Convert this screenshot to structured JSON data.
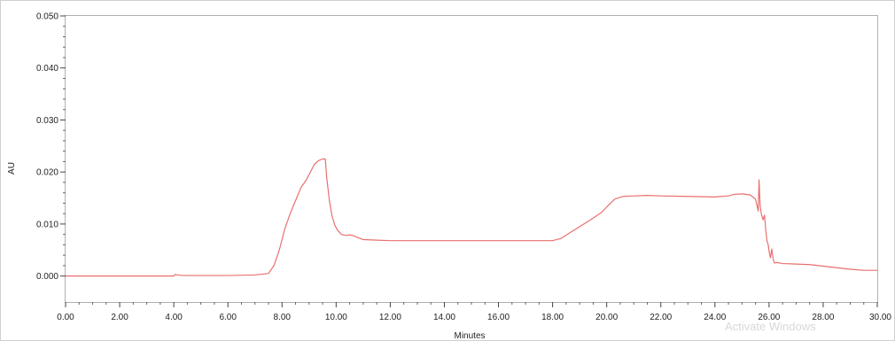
{
  "window": {
    "watermark": "Activate Windows"
  },
  "chart_data": {
    "type": "line",
    "title": "",
    "xlabel": "Minutes",
    "ylabel": "AU",
    "xlim": [
      0,
      30
    ],
    "ylim": [
      -0.005,
      0.05
    ],
    "x_ticks": [
      0,
      2,
      4,
      6,
      8,
      10,
      12,
      14,
      16,
      18,
      20,
      22,
      24,
      26,
      28,
      30
    ],
    "x_tick_labels": [
      "0.00",
      "2.00",
      "4.00",
      "6.00",
      "8.00",
      "10.00",
      "12.00",
      "14.00",
      "16.00",
      "18.00",
      "20.00",
      "22.00",
      "24.00",
      "26.00",
      "28.00",
      "30.00"
    ],
    "y_ticks": [
      0,
      0.01,
      0.02,
      0.03,
      0.04,
      0.05
    ],
    "y_tick_labels": [
      "0.000",
      "0.010",
      "0.020",
      "0.030",
      "0.040",
      "0.050"
    ],
    "grid": false,
    "line_color": "#e8706e",
    "series": [
      {
        "x": [
          0,
          1,
          2,
          3,
          4,
          4.05,
          4.15,
          4.3,
          5,
          6,
          7,
          7.5,
          7.7,
          7.9,
          8.1,
          8.3,
          8.5,
          8.7,
          8.9,
          9.1,
          9.2,
          9.35,
          9.5,
          9.6,
          9.65,
          9.75,
          9.85,
          9.95,
          10.05,
          10.2,
          10.35,
          10.5,
          10.6,
          10.8,
          11,
          11.5,
          12,
          13,
          14,
          15,
          16,
          17,
          18,
          18.3,
          18.6,
          19,
          19.4,
          19.8,
          20.1,
          20.3,
          20.6,
          21,
          21.5,
          22,
          23,
          24,
          24.5,
          24.7,
          25,
          25.3,
          25.5,
          25.6,
          25.63,
          25.67,
          25.72,
          25.78,
          25.83,
          25.88,
          25.92,
          25.97,
          26.0,
          26.05,
          26.1,
          26.15,
          26.2,
          26.3,
          26.5,
          27,
          27.5,
          28,
          28.5,
          29,
          29.5,
          30
        ],
        "y": [
          0.0,
          0.0,
          0.0,
          0.0,
          0.0,
          0.0003,
          0.0002,
          0.0001,
          0.0001,
          0.0001,
          0.0002,
          0.0005,
          0.002,
          0.005,
          0.009,
          0.012,
          0.0145,
          0.017,
          0.0185,
          0.0205,
          0.0215,
          0.0222,
          0.0225,
          0.0225,
          0.019,
          0.0145,
          0.0115,
          0.0098,
          0.0088,
          0.008,
          0.0078,
          0.0079,
          0.0078,
          0.0074,
          0.007,
          0.0069,
          0.0068,
          0.0068,
          0.0068,
          0.0068,
          0.0068,
          0.0068,
          0.0068,
          0.0072,
          0.0082,
          0.0095,
          0.0108,
          0.0122,
          0.0138,
          0.0148,
          0.0153,
          0.0154,
          0.0155,
          0.0154,
          0.0153,
          0.0152,
          0.0154,
          0.0157,
          0.0158,
          0.0156,
          0.0148,
          0.0125,
          0.0185,
          0.0135,
          0.0118,
          0.0108,
          0.0117,
          0.0088,
          0.0068,
          0.006,
          0.0048,
          0.0035,
          0.0052,
          0.0033,
          0.0025,
          0.0026,
          0.0024,
          0.0023,
          0.0022,
          0.0019,
          0.0016,
          0.0013,
          0.0011,
          0.0011
        ]
      }
    ]
  }
}
